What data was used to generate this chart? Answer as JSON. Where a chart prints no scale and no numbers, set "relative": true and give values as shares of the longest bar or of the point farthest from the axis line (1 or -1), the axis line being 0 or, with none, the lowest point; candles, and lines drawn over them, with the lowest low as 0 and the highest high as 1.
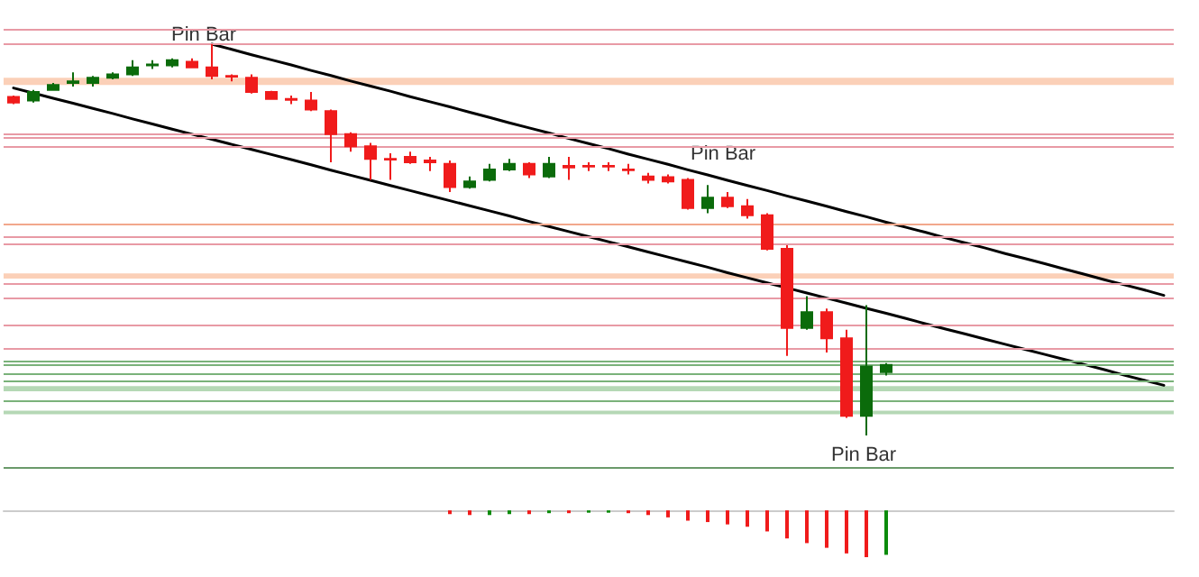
{
  "chart_data": [
    {
      "type": "candlestick",
      "relative": true,
      "marker": "none",
      "line_style": "solid",
      "categories": [
        null,
        null,
        null,
        null,
        null,
        null,
        null,
        null,
        null,
        null,
        null,
        null,
        null,
        null,
        null,
        null,
        null,
        null,
        null,
        null,
        null,
        null,
        null,
        null,
        null,
        null,
        null,
        null,
        null,
        null,
        null,
        null,
        null,
        null,
        null,
        null,
        null,
        null,
        null,
        null,
        null,
        null,
        null,
        null,
        null,
        null,
        null,
        null,
        null,
        null,
        null,
        null,
        null,
        null,
        null,
        null,
        null,
        null,
        null
      ],
      "ohlc": [
        [
          0.865,
          0.869,
          0.847,
          0.851
        ],
        [
          0.856,
          0.883,
          0.851,
          0.878
        ],
        [
          0.883,
          0.901,
          0.881,
          0.896
        ],
        [
          0.901,
          0.928,
          0.892,
          0.905
        ],
        [
          0.901,
          0.919,
          0.892,
          0.914
        ],
        [
          0.914,
          0.928,
          0.91,
          0.923
        ],
        [
          0.923,
          0.959,
          0.919,
          0.941
        ],
        [
          0.946,
          0.959,
          0.937,
          0.948
        ],
        [
          0.946,
          0.964,
          0.941,
          0.959
        ],
        [
          0.955,
          0.964,
          0.941,
          0.941
        ],
        [
          0.941,
          1,
          0.91,
          0.919
        ],
        [
          0.919,
          0.923,
          0.905,
          0.917
        ],
        [
          0.914,
          0.923,
          0.874,
          0.878
        ],
        [
          0.878,
          0.881,
          0.858,
          0.86
        ],
        [
          0.86,
          0.869,
          0.847,
          0.858
        ],
        [
          0.856,
          0.878,
          0.829,
          0.833
        ],
        [
          0.829,
          0.833,
          0.698,
          0.77
        ],
        [
          0.77,
          0.775,
          0.725,
          0.739
        ],
        [
          0.739,
          0.748,
          0.653,
          0.707
        ],
        [
          0.707,
          0.721,
          0.653,
          0.705
        ],
        [
          0.712,
          0.725,
          0.694,
          0.698
        ],
        [
          0.703,
          0.712,
          0.676,
          0.698
        ],
        [
          0.694,
          0.703,
          0.622,
          0.635
        ],
        [
          0.635,
          0.662,
          0.631,
          0.649
        ],
        [
          0.653,
          0.694,
          0.649,
          0.68
        ],
        [
          0.68,
          0.707,
          0.676,
          0.694
        ],
        [
          0.694,
          0.698,
          0.658,
          0.667
        ],
        [
          0.662,
          0.712,
          0.658,
          0.694
        ],
        [
          0.689,
          0.712,
          0.653,
          0.685
        ],
        [
          0.689,
          0.698,
          0.676,
          0.687
        ],
        [
          0.689,
          0.698,
          0.676,
          0.687
        ],
        [
          0.68,
          0.694,
          0.667,
          0.678
        ],
        [
          0.662,
          0.671,
          0.644,
          0.653
        ],
        [
          0.66,
          0.667,
          0.644,
          0.649
        ],
        [
          0.653,
          0.658,
          0.577,
          0.581
        ],
        [
          0.581,
          0.64,
          0.568,
          0.608
        ],
        [
          0.608,
          0.622,
          0.581,
          0.586
        ],
        [
          0.586,
          0.604,
          0.554,
          0.563
        ],
        [
          0.563,
          0.568,
          0.473,
          0.477
        ],
        [
          0.477,
          0.486,
          0.203,
          0.275
        ],
        [
          0.275,
          0.356,
          0.27,
          0.315
        ],
        [
          0.315,
          0.324,
          0.212,
          0.248
        ],
        [
          0.248,
          0.27,
          0.045,
          0.05
        ],
        [
          0.05,
          0.333,
          0,
          0.176
        ],
        [
          0.162,
          0.185,
          0.153,
          0.18
        ],
        null,
        null,
        null,
        null,
        null,
        null,
        null,
        null,
        null,
        null,
        null,
        null,
        null,
        null
      ],
      "colors": [
        "#f01b1b",
        "#0b6b0b",
        "#0b6b0b",
        "#0b6b0b",
        "#0b6b0b",
        "#0b6b0b",
        "#0b6b0b",
        "#0b6b0b",
        "#0b6b0b",
        "#f01b1b",
        "#f01b1b",
        "#f01b1b",
        "#f01b1b",
        "#f01b1b",
        "#f01b1b",
        "#f01b1b",
        "#f01b1b",
        "#f01b1b",
        "#f01b1b",
        "#f01b1b",
        "#f01b1b",
        "#f01b1b",
        "#f01b1b",
        "#0b6b0b",
        "#0b6b0b",
        "#0b6b0b",
        "#f01b1b",
        "#0b6b0b",
        "#f01b1b",
        "#f01b1b",
        "#f01b1b",
        "#f01b1b",
        "#f01b1b",
        "#f01b1b",
        "#f01b1b",
        "#0b6b0b",
        "#f01b1b",
        "#f01b1b",
        "#f01b1b",
        "#f01b1b",
        "#0b6b0b",
        "#f01b1b",
        "#f01b1b",
        "#0b6b0b",
        "#0b6b0b",
        null,
        null,
        null,
        null,
        null,
        null,
        null,
        null,
        null,
        null,
        null,
        null,
        null,
        null
      ],
      "series": [
        {
          "type": "line",
          "color": "#000000",
          "values": [
            null,
            null,
            null,
            null,
            null,
            null,
            null,
            null,
            null,
            null,
            1.0,
            0.987,
            0.973,
            0.96,
            0.947,
            0.933,
            0.92,
            0.906,
            0.893,
            0.88,
            0.866,
            0.853,
            0.84,
            0.826,
            0.813,
            0.799,
            0.786,
            0.773,
            0.759,
            0.746,
            0.733,
            0.719,
            0.706,
            0.693,
            0.679,
            0.666,
            0.652,
            0.639,
            0.626,
            0.612,
            0.599,
            0.586,
            0.572,
            0.559,
            0.545,
            0.532,
            0.519,
            0.505,
            0.492,
            0.479,
            0.465,
            0.452,
            0.439,
            0.425,
            0.412,
            0.398,
            0.385,
            0.372,
            0.358
          ]
        },
        {
          "type": "line",
          "color": "#000000",
          "values": [
            0.888,
            0.875,
            0.862,
            0.849,
            0.836,
            0.823,
            0.809,
            0.796,
            0.783,
            0.77,
            0.757,
            0.744,
            0.731,
            0.718,
            0.705,
            0.692,
            0.678,
            0.665,
            0.652,
            0.639,
            0.626,
            0.613,
            0.6,
            0.587,
            0.574,
            0.561,
            0.547,
            0.534,
            0.521,
            0.508,
            0.495,
            0.482,
            0.469,
            0.456,
            0.443,
            0.43,
            0.416,
            0.403,
            0.39,
            0.377,
            0.364,
            0.351,
            0.338,
            0.325,
            0.312,
            0.299,
            0.285,
            0.272,
            0.259,
            0.246,
            0.233,
            0.22,
            0.207,
            0.194,
            0.181,
            0.168,
            0.154,
            0.141,
            0.128
          ]
        }
      ],
      "ref_lines": [
        {
          "axis": "y",
          "value": 1.037,
          "color": "#e89aa5"
        },
        {
          "axis": "y",
          "value": 1.0,
          "color": "#e89aa5"
        },
        {
          "axis": "y",
          "value": 0.77,
          "color": "#e89aa5"
        },
        {
          "axis": "y",
          "value": 0.757,
          "color": "#e89aa5"
        },
        {
          "axis": "y",
          "value": 0.743,
          "color": "#e89aa5"
        },
        {
          "axis": "y",
          "value": 0.541,
          "color": "#f2a88c"
        },
        {
          "axis": "y",
          "value": 0.507,
          "color": "#e89aa5"
        },
        {
          "axis": "y",
          "value": 0.486,
          "color": "#e89aa5"
        },
        {
          "axis": "y",
          "value": 0.387,
          "color": "#e89aa5"
        },
        {
          "axis": "y",
          "value": 0.351,
          "color": "#e89aa5"
        },
        {
          "axis": "y",
          "value": 0.275,
          "color": "#e89aa5"
        },
        {
          "axis": "y",
          "value": 0.216,
          "color": "#e89aa5"
        },
        {
          "axis": "y",
          "value": 0.194,
          "color": "#7ab27a"
        },
        {
          "axis": "y",
          "value": 0.176,
          "color": "#7ab27a"
        },
        {
          "axis": "y",
          "value": 0.158,
          "color": "#7ab27a"
        },
        {
          "axis": "y",
          "value": 0.144,
          "color": "#7ab27a"
        },
        {
          "axis": "y",
          "value": 0.09,
          "color": "#7ab27a"
        },
        {
          "axis": "y",
          "value": -0.081,
          "color": "#6a9a6a"
        }
      ],
      "bands": [
        {
          "axis": "y",
          "from": 0.896,
          "to": 0.914,
          "color": "#fbd0b8"
        },
        {
          "axis": "y",
          "from": 0.401,
          "to": 0.414,
          "color": "#fbd0b8"
        },
        {
          "axis": "y",
          "from": 0.113,
          "to": 0.126,
          "color": "#b5d8b5"
        },
        {
          "axis": "y",
          "from": 0.054,
          "to": 0.063,
          "color": "#b5d8b5"
        }
      ],
      "annotations": [
        "Pin Bar",
        "Pin Bar",
        "Pin Bar"
      ]
    },
    {
      "type": "bar",
      "relative": true,
      "categories": [
        null,
        null,
        null,
        null,
        null,
        null,
        null,
        null,
        null,
        null,
        null,
        null,
        null,
        null,
        null,
        null,
        null,
        null,
        null,
        null,
        null,
        null,
        null,
        null,
        null,
        null,
        null,
        null,
        null,
        null,
        null,
        null,
        null,
        null,
        null,
        null,
        null,
        null,
        null,
        null,
        null,
        null,
        null,
        null,
        null,
        null,
        null,
        null,
        null,
        null,
        null,
        null,
        null,
        null,
        null,
        null,
        null,
        null,
        null
      ],
      "values": [
        null,
        null,
        null,
        null,
        null,
        null,
        null,
        null,
        null,
        null,
        null,
        null,
        null,
        null,
        null,
        null,
        null,
        null,
        null,
        null,
        null,
        null,
        -0.08,
        -0.1,
        -0.1,
        -0.08,
        -0.08,
        -0.06,
        -0.06,
        -0.05,
        -0.05,
        -0.06,
        -0.1,
        -0.15,
        -0.22,
        -0.25,
        -0.3,
        -0.35,
        -0.45,
        -0.6,
        -0.7,
        -0.8,
        -0.92,
        -1,
        -0.95,
        null,
        null,
        null,
        null,
        null,
        null,
        null,
        null,
        null,
        null,
        null,
        null,
        null,
        null
      ],
      "colors": [
        null,
        null,
        null,
        null,
        null,
        null,
        null,
        null,
        null,
        null,
        null,
        null,
        null,
        null,
        null,
        null,
        null,
        null,
        null,
        null,
        null,
        null,
        "#f01b1b",
        "#f01b1b",
        "#0b8b0b",
        "#0b8b0b",
        "#f01b1b",
        "#0b8b0b",
        "#f01b1b",
        "#0b8b0b",
        "#0b8b0b",
        "#f01b1b",
        "#f01b1b",
        "#f01b1b",
        "#f01b1b",
        "#f01b1b",
        "#f01b1b",
        "#f01b1b",
        "#f01b1b",
        "#f01b1b",
        "#f01b1b",
        "#f01b1b",
        "#f01b1b",
        "#f01b1b",
        "#0b8b0b",
        null,
        null,
        null,
        null,
        null,
        null,
        null,
        null,
        null,
        null,
        null,
        null,
        null,
        null
      ]
    }
  ]
}
